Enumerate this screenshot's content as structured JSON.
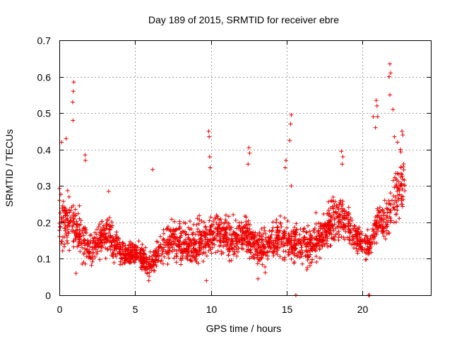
{
  "chart_data": {
    "type": "scatter",
    "title": "Day 189 of 2015, SRMTID for receiver ebre",
    "xlabel": "GPS time / hours",
    "ylabel": "SRMTID / TECUs",
    "xlim": [
      0,
      24.5
    ],
    "ylim": [
      0,
      0.7
    ],
    "x_ticks": [
      0,
      5,
      10,
      15,
      20
    ],
    "x_tick_labels": [
      "0",
      "5",
      "10",
      "15",
      "20"
    ],
    "y_ticks": [
      0,
      0.1,
      0.2,
      0.3,
      0.4,
      0.5,
      0.6,
      0.7
    ],
    "y_tick_labels": [
      "0",
      "0.1",
      "0.2",
      "0.3",
      "0.4",
      "0.5",
      "0.6",
      "0.7"
    ],
    "grid": true,
    "marker": "plus",
    "color": "#ee0000",
    "series": [
      {
        "name": "SRMTID",
        "trend": {
          "hours": [
            0,
            0.5,
            1,
            1.5,
            2,
            2.5,
            3,
            3.5,
            4,
            4.5,
            5,
            5.5,
            6,
            6.5,
            7,
            7.5,
            8,
            8.5,
            9,
            9.5,
            10,
            10.5,
            11,
            11.5,
            12,
            12.5,
            13,
            13.5,
            14,
            14.5,
            15,
            15.5,
            16,
            16.5,
            17,
            17.5,
            18,
            18.5,
            19,
            19.5,
            20,
            20.5,
            21,
            21.5,
            22,
            22.5,
            22.8
          ],
          "typical": [
            0.22,
            0.2,
            0.19,
            0.15,
            0.13,
            0.14,
            0.17,
            0.15,
            0.12,
            0.11,
            0.12,
            0.1,
            0.08,
            0.12,
            0.14,
            0.15,
            0.15,
            0.14,
            0.14,
            0.15,
            0.17,
            0.18,
            0.16,
            0.15,
            0.16,
            0.17,
            0.13,
            0.13,
            0.14,
            0.16,
            0.15,
            0.15,
            0.14,
            0.13,
            0.15,
            0.18,
            0.2,
            0.21,
            0.2,
            0.16,
            0.14,
            0.14,
            0.19,
            0.2,
            0.25,
            0.3,
            0.3
          ],
          "spread": [
            0.08,
            0.07,
            0.06,
            0.05,
            0.04,
            0.04,
            0.05,
            0.04,
            0.03,
            0.03,
            0.03,
            0.03,
            0.03,
            0.04,
            0.05,
            0.05,
            0.05,
            0.05,
            0.05,
            0.05,
            0.05,
            0.05,
            0.05,
            0.05,
            0.05,
            0.05,
            0.04,
            0.05,
            0.05,
            0.05,
            0.05,
            0.05,
            0.05,
            0.05,
            0.05,
            0.05,
            0.06,
            0.06,
            0.05,
            0.04,
            0.03,
            0.04,
            0.06,
            0.06,
            0.08,
            0.08,
            0.07
          ]
        },
        "spikes": [
          {
            "x": 0.15,
            "y": 0.42
          },
          {
            "x": 0.45,
            "y": 0.43
          },
          {
            "x": 0.95,
            "y": 0.585
          },
          {
            "x": 0.92,
            "y": 0.56
          },
          {
            "x": 0.88,
            "y": 0.53
          },
          {
            "x": 0.9,
            "y": 0.48
          },
          {
            "x": 1.7,
            "y": 0.385
          },
          {
            "x": 1.72,
            "y": 0.37
          },
          {
            "x": 3.25,
            "y": 0.285
          },
          {
            "x": 6.15,
            "y": 0.345
          },
          {
            "x": 9.85,
            "y": 0.45
          },
          {
            "x": 9.88,
            "y": 0.435
          },
          {
            "x": 9.92,
            "y": 0.38
          },
          {
            "x": 9.95,
            "y": 0.35
          },
          {
            "x": 12.5,
            "y": 0.405
          },
          {
            "x": 12.55,
            "y": 0.39
          },
          {
            "x": 12.45,
            "y": 0.36
          },
          {
            "x": 14.95,
            "y": 0.37
          },
          {
            "x": 14.9,
            "y": 0.35
          },
          {
            "x": 15.3,
            "y": 0.495
          },
          {
            "x": 15.25,
            "y": 0.47
          },
          {
            "x": 15.2,
            "y": 0.425
          },
          {
            "x": 15.3,
            "y": 0.3
          },
          {
            "x": 18.6,
            "y": 0.395
          },
          {
            "x": 18.7,
            "y": 0.38
          },
          {
            "x": 18.65,
            "y": 0.36
          },
          {
            "x": 20.7,
            "y": 0.49
          },
          {
            "x": 20.9,
            "y": 0.535
          },
          {
            "x": 20.95,
            "y": 0.52
          },
          {
            "x": 21.0,
            "y": 0.49
          },
          {
            "x": 20.85,
            "y": 0.46
          },
          {
            "x": 21.8,
            "y": 0.635
          },
          {
            "x": 21.85,
            "y": 0.61
          },
          {
            "x": 21.75,
            "y": 0.6
          },
          {
            "x": 21.8,
            "y": 0.55
          },
          {
            "x": 22.0,
            "y": 0.51
          },
          {
            "x": 22.1,
            "y": 0.435
          },
          {
            "x": 22.3,
            "y": 0.42
          },
          {
            "x": 22.6,
            "y": 0.45
          },
          {
            "x": 22.65,
            "y": 0.44
          },
          {
            "x": 22.5,
            "y": 0.4
          },
          {
            "x": 15.6,
            "y": 0.0
          },
          {
            "x": 20.4,
            "y": 0.0
          },
          {
            "x": 20.45,
            "y": 0.0
          },
          {
            "x": 1.1,
            "y": 0.06
          },
          {
            "x": 5.9,
            "y": 0.04
          },
          {
            "x": 9.7,
            "y": 0.04
          },
          {
            "x": 13.1,
            "y": 0.045
          }
        ]
      }
    ]
  }
}
